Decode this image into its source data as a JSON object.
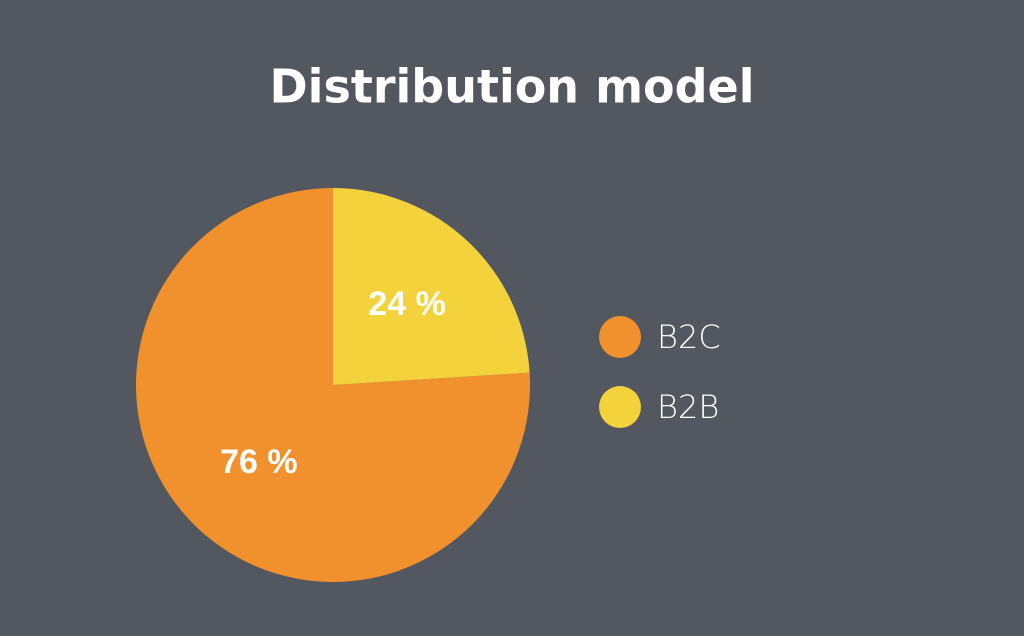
{
  "chart_data": {
    "type": "pie",
    "title": "Distribution model",
    "categories": [
      "B2C",
      "B2B"
    ],
    "values": [
      76,
      24
    ],
    "value_labels": [
      "76 %",
      "24 %"
    ],
    "colors": [
      "#f0912e",
      "#f3d23c"
    ]
  }
}
